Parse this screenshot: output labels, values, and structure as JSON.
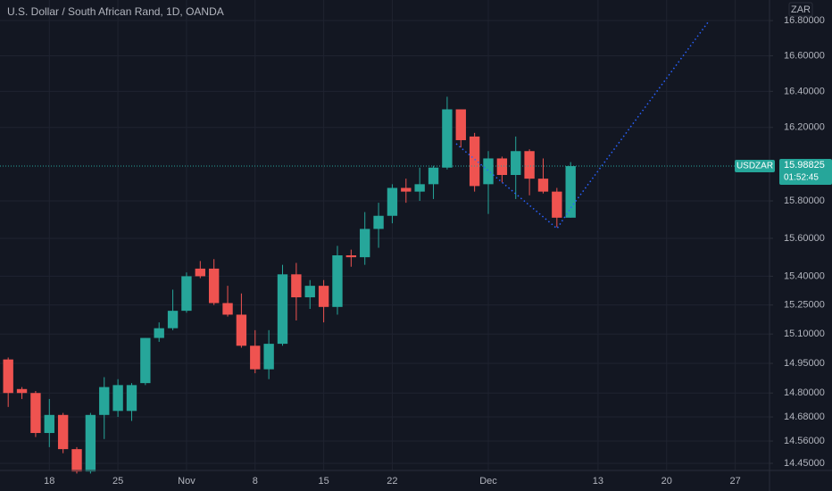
{
  "chart_data": {
    "type": "candlestick",
    "title": "U.S. Dollar / South African Rand, 1D, OANDA",
    "currency": "ZAR",
    "symbol": "USDZAR",
    "last_price": 15.98825,
    "countdown": "01:52:45",
    "log_scale": true,
    "grid": true,
    "up_color": "#26a69a",
    "down_color": "#ef5350",
    "categories": [
      null,
      null,
      null,
      "18",
      null,
      null,
      null,
      null,
      "25",
      null,
      null,
      null,
      null,
      "Nov",
      null,
      null,
      null,
      null,
      "8",
      null,
      null,
      null,
      null,
      "15",
      null,
      null,
      null,
      null,
      "22",
      null,
      null,
      null,
      null,
      null,
      null,
      "Dec",
      null,
      null,
      null,
      null,
      null,
      null,
      null,
      "13",
      null,
      null,
      null,
      null,
      "20",
      null,
      null,
      null,
      null,
      "27",
      null,
      null
    ],
    "open": [
      14.97,
      14.82,
      14.8,
      14.6,
      14.69,
      14.52,
      14.41,
      14.69,
      14.71,
      14.71,
      14.85,
      15.08,
      15.13,
      15.22,
      15.44,
      15.44,
      15.26,
      15.2,
      15.04,
      14.92,
      15.05,
      15.41,
      15.29,
      15.35,
      15.24,
      15.51,
      15.5,
      15.65,
      15.72,
      15.87,
      15.85,
      15.89,
      15.98,
      16.3,
      16.15,
      15.89,
      16.03,
      15.94,
      16.07,
      15.92,
      15.85,
      15.71,
      null,
      null,
      null,
      null,
      null,
      null,
      null,
      null,
      null,
      null,
      null,
      null,
      null,
      null
    ],
    "high": [
      14.98,
      14.83,
      14.81,
      14.77,
      14.7,
      14.53,
      14.7,
      14.88,
      14.87,
      14.85,
      15.08,
      15.16,
      15.33,
      15.42,
      15.48,
      15.49,
      15.35,
      15.31,
      15.12,
      15.12,
      15.46,
      15.47,
      15.38,
      15.38,
      15.56,
      15.54,
      15.74,
      15.79,
      15.89,
      15.92,
      15.98,
      15.99,
      16.37,
      16.3,
      16.17,
      16.07,
      16.04,
      16.15,
      16.08,
      16.03,
      15.87,
      16.01,
      null,
      null,
      null,
      null,
      null,
      null,
      null,
      null,
      null,
      null,
      null,
      null,
      null,
      null
    ],
    "low": [
      14.73,
      14.77,
      14.58,
      14.53,
      14.5,
      14.4,
      14.4,
      14.57,
      14.68,
      14.66,
      14.84,
      15.06,
      15.12,
      15.21,
      15.39,
      15.25,
      15.19,
      15.03,
      14.9,
      14.87,
      15.04,
      15.17,
      15.23,
      15.16,
      15.2,
      15.45,
      15.46,
      15.55,
      15.68,
      15.79,
      15.8,
      15.81,
      15.97,
      16.09,
      15.85,
      15.73,
      15.9,
      15.81,
      15.83,
      15.84,
      15.66,
      15.71,
      null,
      null,
      null,
      null,
      null,
      null,
      null,
      null,
      null,
      null,
      null,
      null,
      null,
      null
    ],
    "close": [
      14.8,
      14.8,
      14.6,
      14.69,
      14.52,
      14.41,
      14.69,
      14.83,
      14.84,
      14.84,
      15.08,
      15.13,
      15.22,
      15.4,
      15.4,
      15.26,
      15.2,
      15.04,
      14.92,
      15.05,
      15.41,
      15.29,
      15.35,
      15.24,
      15.51,
      15.5,
      15.65,
      15.72,
      15.87,
      15.85,
      15.89,
      15.98,
      16.3,
      16.13,
      15.88,
      16.03,
      15.94,
      16.07,
      15.92,
      15.85,
      15.71,
      15.98825,
      null,
      null,
      null,
      null,
      null,
      null,
      null,
      null,
      null,
      null,
      null,
      null,
      null,
      null
    ],
    "ylim": [
      14.415,
      16.918
    ],
    "yticks": [
      {
        "value": 14.45,
        "label": "14.45000"
      },
      {
        "value": 14.56,
        "label": "14.56000"
      },
      {
        "value": 14.68,
        "label": "14.68000"
      },
      {
        "value": 14.8,
        "label": "14.80000"
      },
      {
        "value": 14.95,
        "label": "14.95000"
      },
      {
        "value": 15.1,
        "label": "15.10000"
      },
      {
        "value": 15.25,
        "label": "15.25000"
      },
      {
        "value": 15.4,
        "label": "15.40000"
      },
      {
        "value": 15.6,
        "label": "15.60000"
      },
      {
        "value": 15.8,
        "label": "15.80000"
      },
      {
        "value": 16.2,
        "label": "16.20000"
      },
      {
        "value": 16.4,
        "label": "16.40000"
      },
      {
        "value": 16.6,
        "label": "16.60000"
      },
      {
        "value": 16.8,
        "label": "16.80000"
      }
    ]
  }
}
